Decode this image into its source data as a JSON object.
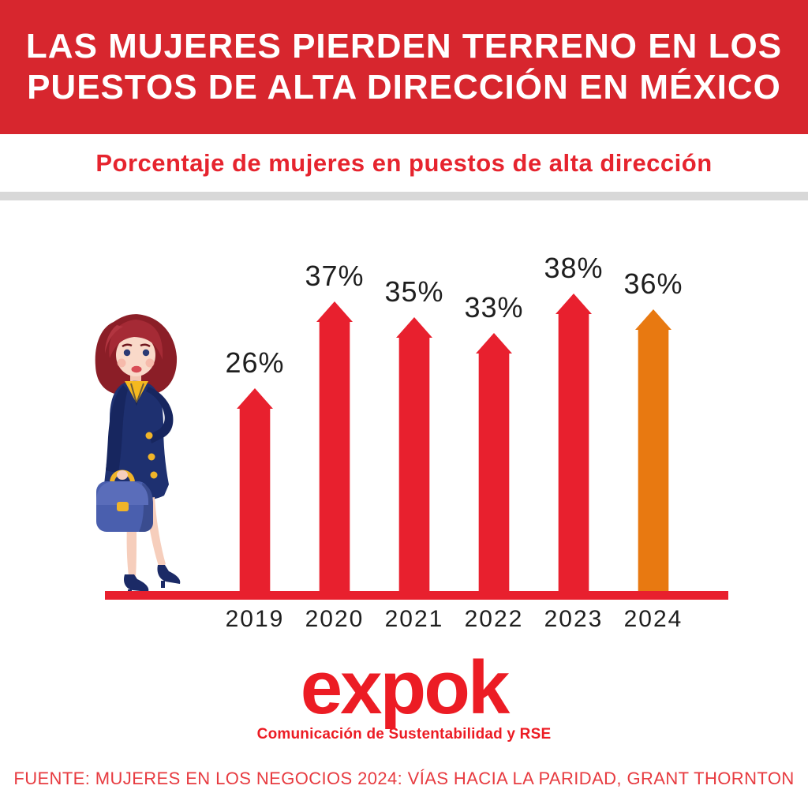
{
  "colors": {
    "header_bg": "#D7262E",
    "header_text": "#FFFFFF",
    "subtitle_red": "#E6242E",
    "divider_gray": "#D8D8D8",
    "bar_red": "#E8202E",
    "bar_orange": "#E87911",
    "axis_red": "#E8202E",
    "label_dark": "#1E1E1E",
    "logo_red": "#EC1C24",
    "source_red": "#E73B40"
  },
  "header": {
    "title_line1": "LAS MUJERES PIERDEN TERRENO EN LOS",
    "title_line2": "PUESTOS DE ALTA DIRECCIÓN EN MÉXICO"
  },
  "subtitle": {
    "text": "Porcentaje de mujeres en puestos de alta dirección"
  },
  "chart_data": {
    "type": "bar",
    "title": "Porcentaje de mujeres en puestos de alta dirección",
    "categories": [
      "2019",
      "2020",
      "2021",
      "2022",
      "2023",
      "2024"
    ],
    "values": [
      26,
      37,
      35,
      33,
      38,
      36
    ],
    "unit": "%",
    "value_labels": [
      "26%",
      "37%",
      "35%",
      "33%",
      "38%",
      "36%"
    ],
    "xlabel": "",
    "ylabel": "",
    "ylim": [
      0,
      40
    ],
    "grid": false,
    "legend": false,
    "bar_shape": "pointed-arrow-top",
    "series_color": "#E8202E",
    "highlight_category": "2024",
    "highlight_color": "#E87911"
  },
  "illustration": {
    "alt": "Ilustración de mujer ejecutiva con portafolio"
  },
  "logo": {
    "text": "expok",
    "tagline": "Comunicación de Sustentabilidad y RSE"
  },
  "source": {
    "text": "FUENTE: MUJERES EN LOS NEGOCIOS 2024: VÍAS HACIA LA PARIDAD, GRANT THORNTON"
  }
}
